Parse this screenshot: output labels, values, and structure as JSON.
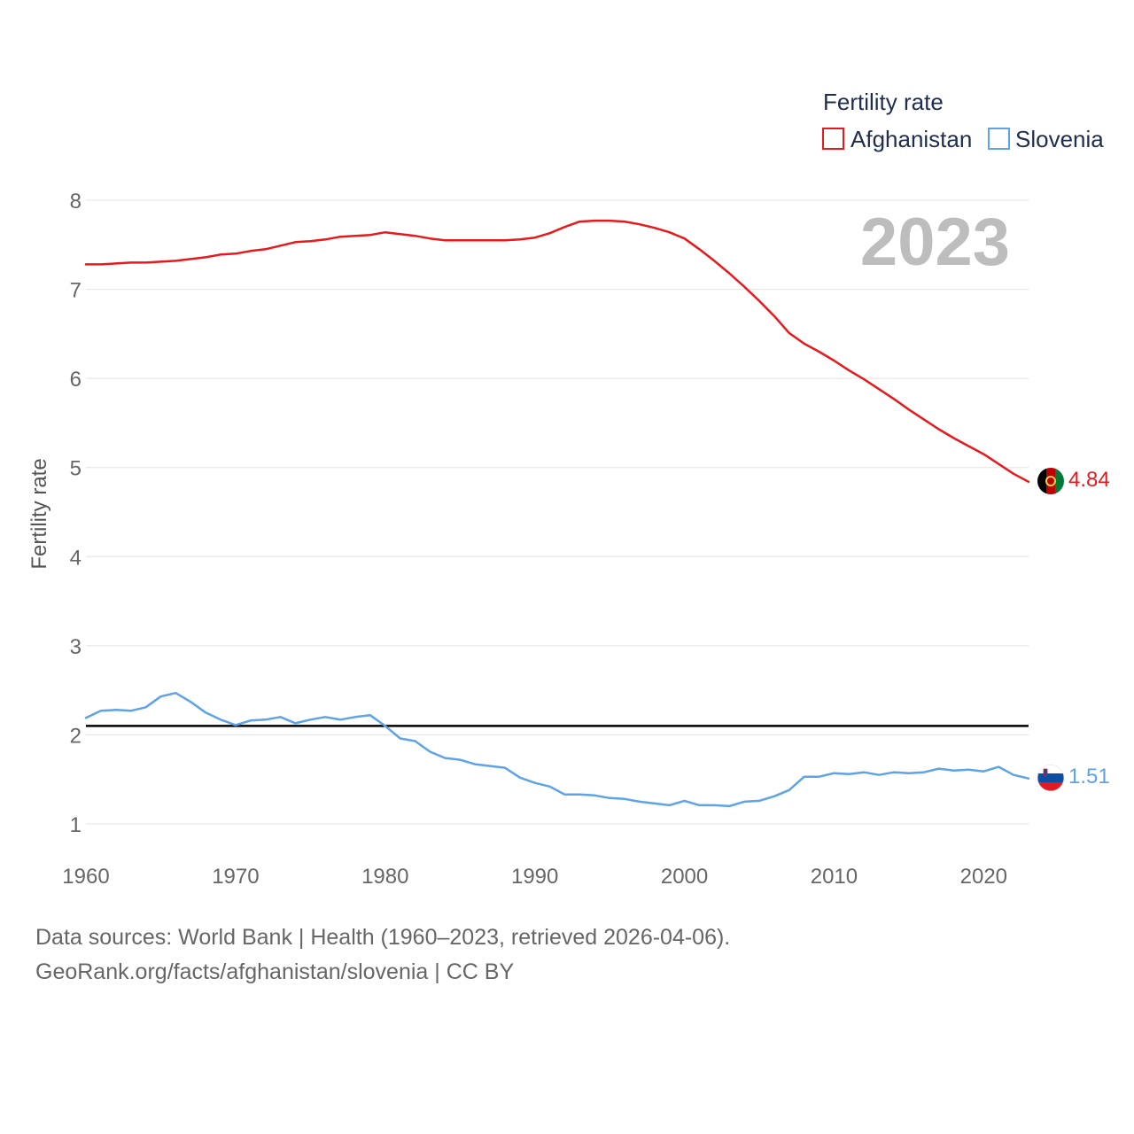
{
  "chart_data": {
    "type": "line",
    "title": "",
    "ylabel": "Fertility rate",
    "xlabel": "",
    "xlim": [
      1960,
      2023
    ],
    "ylim": [
      1,
      8
    ],
    "x_ticks": [
      1960,
      1970,
      1980,
      1990,
      2000,
      2010,
      2020
    ],
    "y_ticks": [
      1,
      2,
      3,
      4,
      5,
      6,
      7,
      8
    ],
    "legend_title": "Fertility rate",
    "legend_position": "top-right",
    "year_label": "2023",
    "reference_line": {
      "value": 2.1,
      "color": "#000000"
    },
    "x": [
      1960,
      1961,
      1962,
      1963,
      1964,
      1965,
      1966,
      1967,
      1968,
      1969,
      1970,
      1971,
      1972,
      1973,
      1974,
      1975,
      1976,
      1977,
      1978,
      1979,
      1980,
      1981,
      1982,
      1983,
      1984,
      1985,
      1986,
      1987,
      1988,
      1989,
      1990,
      1991,
      1992,
      1993,
      1994,
      1995,
      1996,
      1997,
      1998,
      1999,
      2000,
      2001,
      2002,
      2003,
      2004,
      2005,
      2006,
      2007,
      2008,
      2009,
      2010,
      2011,
      2012,
      2013,
      2014,
      2015,
      2016,
      2017,
      2018,
      2019,
      2020,
      2021,
      2022,
      2023
    ],
    "series": [
      {
        "name": "Afghanistan",
        "color": "#e8191c",
        "end_label": "4.84",
        "flag": "afghanistan-flag",
        "values": [
          7.28,
          7.28,
          7.29,
          7.3,
          7.3,
          7.31,
          7.32,
          7.34,
          7.36,
          7.39,
          7.4,
          7.43,
          7.45,
          7.49,
          7.53,
          7.54,
          7.56,
          7.59,
          7.6,
          7.61,
          7.64,
          7.62,
          7.6,
          7.57,
          7.55,
          7.55,
          7.55,
          7.55,
          7.55,
          7.56,
          7.58,
          7.63,
          7.7,
          7.76,
          7.77,
          7.77,
          7.76,
          7.73,
          7.69,
          7.64,
          7.57,
          7.45,
          7.32,
          7.18,
          7.03,
          6.87,
          6.7,
          6.51,
          6.39,
          6.3,
          6.2,
          6.09,
          5.99,
          5.88,
          5.77,
          5.65,
          5.54,
          5.43,
          5.33,
          5.24,
          5.15,
          5.04,
          4.93,
          4.84
        ]
      },
      {
        "name": "Slovenia",
        "color": "#5ea3e6",
        "end_label": "1.51",
        "flag": "slovenia-flag",
        "values": [
          2.19,
          2.27,
          2.28,
          2.27,
          2.31,
          2.43,
          2.47,
          2.37,
          2.25,
          2.17,
          2.11,
          2.16,
          2.17,
          2.2,
          2.13,
          2.17,
          2.2,
          2.17,
          2.2,
          2.22,
          2.1,
          1.96,
          1.93,
          1.81,
          1.74,
          1.72,
          1.67,
          1.65,
          1.63,
          1.52,
          1.46,
          1.42,
          1.33,
          1.33,
          1.32,
          1.29,
          1.28,
          1.25,
          1.23,
          1.21,
          1.26,
          1.21,
          1.21,
          1.2,
          1.25,
          1.26,
          1.31,
          1.38,
          1.53,
          1.53,
          1.57,
          1.56,
          1.58,
          1.55,
          1.58,
          1.57,
          1.58,
          1.62,
          1.6,
          1.61,
          1.59,
          1.64,
          1.55,
          1.51
        ]
      }
    ]
  },
  "footer": {
    "sources": "Data sources: World Bank | Health (1960–2023, retrieved 2026-04-06).",
    "credit": "GeoRank.org/facts/afghanistan/slovenia | CC BY"
  }
}
